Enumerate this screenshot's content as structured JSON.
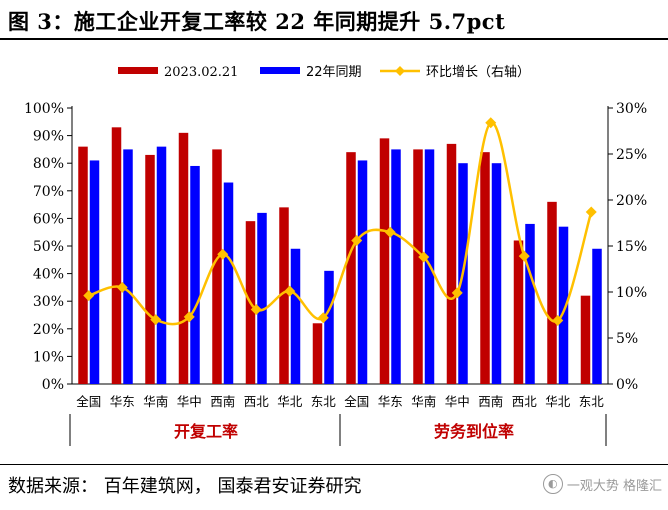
{
  "title": "图 3：施工企业开复工率较 22 年同期提升 5.7pct",
  "source": "数据来源：  百年建筑网，  国泰君安证券研究",
  "watermark": "一观大势  格隆汇",
  "colors": {
    "series1": "#c00000",
    "series2": "#0000ff",
    "series3": "#ffc000"
  },
  "chart_data": {
    "type": "bar",
    "categories": [
      "全国",
      "华东",
      "华南",
      "华中",
      "西南",
      "西北",
      "华北",
      "东北",
      "全国",
      "华东",
      "华南",
      "华中",
      "西南",
      "西北",
      "华北",
      "东北"
    ],
    "groups": [
      {
        "label": "开复工率",
        "from": 0,
        "to": 7
      },
      {
        "label": "劳务到位率",
        "from": 8,
        "to": 15
      }
    ],
    "series": [
      {
        "name": "2023.02.21",
        "type": "bar",
        "axis": "left",
        "values": [
          86,
          93,
          83,
          91,
          85,
          59,
          64,
          22,
          84,
          89,
          85,
          87,
          84,
          52,
          66,
          32
        ]
      },
      {
        "name": "22年同期",
        "type": "bar",
        "axis": "left",
        "values": [
          81,
          85,
          86,
          79,
          73,
          62,
          49,
          41,
          81,
          85,
          85,
          80,
          80,
          58,
          57,
          49
        ]
      },
      {
        "name": "环比增长（右轴）",
        "type": "line",
        "axis": "right",
        "values": [
          9.6,
          10.5,
          7.0,
          7.3,
          14.1,
          8.1,
          10.1,
          7.2,
          15.6,
          16.5,
          13.8,
          9.9,
          28.4,
          13.9,
          6.9,
          18.7
        ]
      }
    ],
    "y_left": {
      "min": 0,
      "max": 100,
      "step": 10,
      "format": "percent"
    },
    "y_right": {
      "min": 0,
      "max": 30,
      "step": 5,
      "format": "percent"
    },
    "legend_position": "top",
    "grid": false
  }
}
